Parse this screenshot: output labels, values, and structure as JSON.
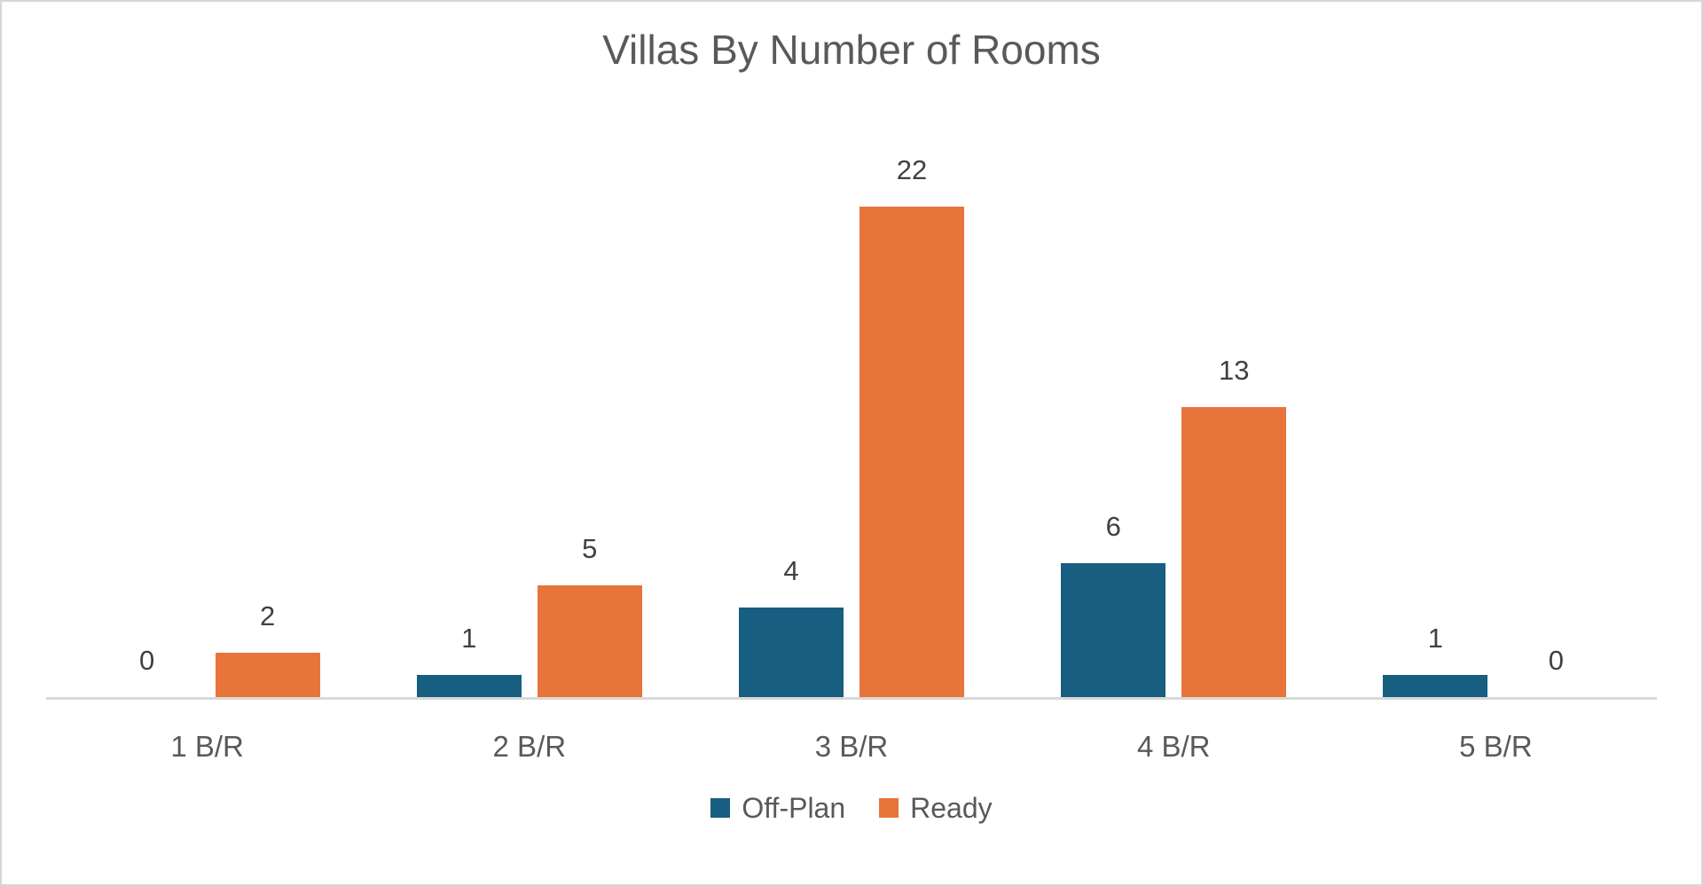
{
  "chart_data": {
    "type": "bar",
    "title": "Villas By Number of Rooms",
    "categories": [
      "1 B/R",
      "2 B/R",
      "3 B/R",
      "4 B/R",
      "5 B/R"
    ],
    "series": [
      {
        "name": "Off-Plan",
        "color": "#175e80",
        "values": [
          0,
          1,
          4,
          6,
          1
        ]
      },
      {
        "name": "Ready",
        "color": "#e7743a",
        "values": [
          2,
          5,
          22,
          13,
          0
        ]
      }
    ],
    "data_labels": true,
    "xlabel": "",
    "ylabel": "",
    "value_axis_visible": false,
    "implied_value_max": 22,
    "grid": false,
    "legend_position": "bottom"
  },
  "colors": {
    "off_plan_bar": "#175e80",
    "ready_bar": "#e7743a",
    "title_text": "#595959",
    "data_label_text": "#404040",
    "category_label_text": "#595959",
    "axis_line": "#d9d9d9",
    "background": "#ffffff",
    "frame_border": "#d6d6d6"
  }
}
